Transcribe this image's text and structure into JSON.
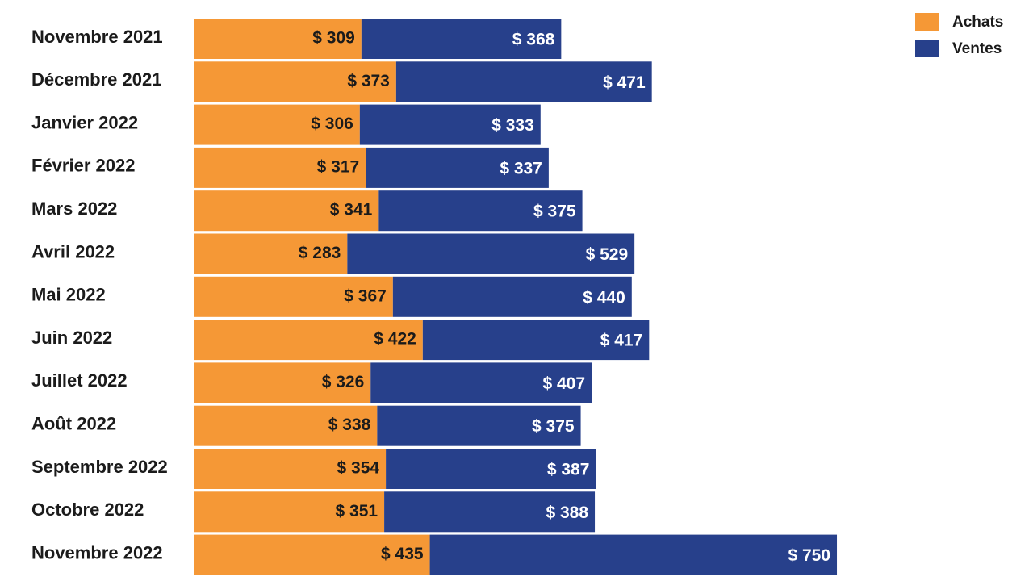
{
  "chart_data": {
    "type": "bar",
    "orientation": "horizontal",
    "stacked": true,
    "categories": [
      "Novembre 2021",
      "Décembre 2021",
      "Janvier 2022",
      "Février 2022",
      "Mars 2022",
      "Avril 2022",
      "Mai 2022",
      "Juin 2022",
      "Juillet 2022",
      "Août 2022",
      "Septembre 2022",
      "Octobre 2022",
      "Novembre 2022"
    ],
    "series": [
      {
        "name": "Achats",
        "color": "#f59836",
        "values": [
          309,
          373,
          306,
          317,
          341,
          283,
          367,
          422,
          326,
          338,
          354,
          351,
          435
        ],
        "labels": [
          "$ 309",
          "$ 373",
          "$ 306",
          "$ 317",
          "$ 341",
          "$ 283",
          "$ 367",
          "$ 422",
          "$ 326",
          "$ 338",
          "$ 354",
          "$ 351",
          "$ 435"
        ]
      },
      {
        "name": "Ventes",
        "color": "#27408b",
        "values": [
          368,
          471,
          333,
          337,
          375,
          529,
          440,
          417,
          407,
          375,
          387,
          388,
          750
        ],
        "labels": [
          "$ 368",
          "$ 471",
          "$ 333",
          "$ 337",
          "$ 375",
          "$ 529",
          "$ 440",
          "$ 417",
          "$ 407",
          "$ 375",
          "$ 387",
          "$ 388",
          "$ 750"
        ]
      }
    ],
    "title": "",
    "xlabel": "",
    "ylabel": "",
    "legend_position": "top-right",
    "grid": false
  }
}
